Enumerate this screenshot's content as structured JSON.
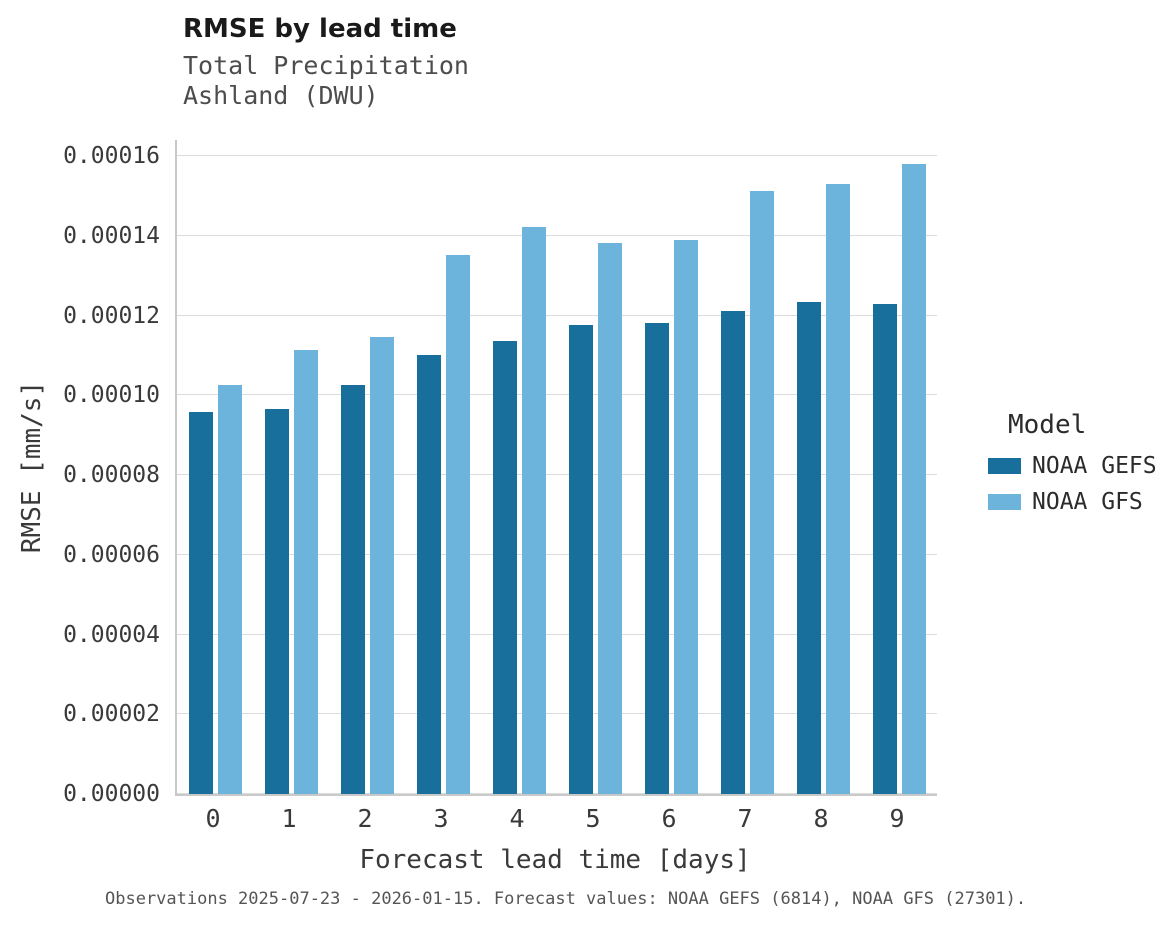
{
  "title": "RMSE by lead time",
  "subtitle1": "Total Precipitation",
  "subtitle2": "Ashland (DWU)",
  "xlabel": "Forecast lead time [days]",
  "ylabel": "RMSE [mm/s]",
  "caption": "Observations 2025-07-23 - 2026-01-15. Forecast values: NOAA GEFS (6814), NOAA GFS (27301).",
  "legend": {
    "title": "Model"
  },
  "colors": {
    "gridline": "#dcdcdc",
    "axis": "#c9c9c9",
    "text": "#3a3a3a",
    "caption": "#555555"
  },
  "chart_data": {
    "type": "bar",
    "categories": [
      "0",
      "1",
      "2",
      "3",
      "4",
      "5",
      "6",
      "7",
      "8",
      "9"
    ],
    "series": [
      {
        "name": "NOAA GEFS",
        "color": "#186f9c",
        "values": [
          9.58e-05,
          9.66e-05,
          0.0001026,
          0.00011,
          0.0001136,
          0.0001176,
          0.000118,
          0.0001211,
          0.0001235,
          0.0001228
        ]
      },
      {
        "name": "NOAA GFS",
        "color": "#6cb4dc",
        "values": [
          0.0001026,
          0.0001113,
          0.0001146,
          0.0001351,
          0.0001421,
          0.0001382,
          0.000139,
          0.0001512,
          0.000153,
          0.000158
        ]
      }
    ],
    "title": "RMSE by lead time",
    "subtitle": "Total Precipitation — Ashland (DWU)",
    "xlabel": "Forecast lead time [days]",
    "ylabel": "RMSE [mm/s]",
    "ylim": [
      0,
      0.00016
    ],
    "ytick_step": 2e-05,
    "yticks": [
      "0.00000",
      "0.00002",
      "0.00004",
      "0.00006",
      "0.00008",
      "0.00010",
      "0.00012",
      "0.00014",
      "0.00016"
    ],
    "grid": "horizontal",
    "legend_position": "right"
  }
}
